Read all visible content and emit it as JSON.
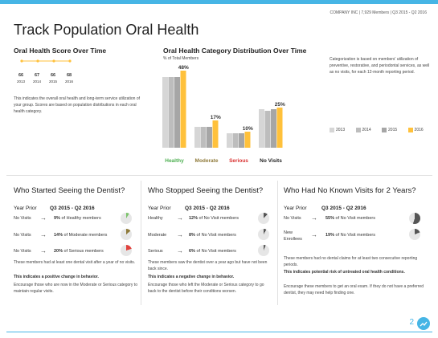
{
  "header": {
    "company": "COMPANY INC | 7,929 Members | Q3 2015 - Q2 2016",
    "title": "Track Population Oral Health",
    "page_number": "2"
  },
  "score": {
    "heading": "Oral Health Score Over Time",
    "values": [
      "66",
      "67",
      "66",
      "68"
    ],
    "years": [
      "2013",
      "2014",
      "2015",
      "2016"
    ],
    "description": "This indicates the overall oral health and long-term service utilization of your group. Scores are based on population distributions in each oral health category."
  },
  "distribution": {
    "heading": "Oral Health Category Distribution Over Time",
    "note": "Categorization is based on members' utilization of preventive, restorative, and periodontal services, as well as no visits, for each 12-month reporting period."
  },
  "chart_data": {
    "type": "bar",
    "title": "Oral Health Category Distribution Over Time",
    "ylabel": "% of Total Members",
    "categories": [
      "Healthy",
      "Moderate",
      "Serious",
      "No Visits"
    ],
    "category_colors": [
      "#4caf50",
      "#8f7a3a",
      "#d9302f",
      "#222222"
    ],
    "series": [
      {
        "name": "2013",
        "color": "#d6d6d6",
        "values": [
          44,
          13,
          9,
          24
        ]
      },
      {
        "name": "2014",
        "color": "#bdbdbd",
        "values": [
          44,
          13,
          9,
          23
        ]
      },
      {
        "name": "2015",
        "color": "#a6a6a6",
        "values": [
          44,
          13,
          9,
          24
        ]
      },
      {
        "name": "2016",
        "color": "#ffc13b",
        "values": [
          48,
          17,
          10,
          25
        ]
      }
    ],
    "data_labels": [
      "48%",
      "17%",
      "10%",
      "25%"
    ],
    "ylim": [
      0,
      50
    ],
    "grid": false,
    "legend": "right"
  },
  "panels": [
    {
      "title": "Who Started Seeing the Dentist?",
      "col1": "Year Prior",
      "col2": "Q3 2015 - Q2 2016",
      "rows": [
        {
          "from": "No Visits",
          "pct": "9%",
          "suffix": "of Healthy members",
          "color": "#7cc36b",
          "frac": 0.09
        },
        {
          "from": "No Visits",
          "pct": "14%",
          "suffix": "of Moderate members",
          "color": "#8f7a3a",
          "frac": 0.14
        },
        {
          "from": "No Visits",
          "pct": "20%",
          "suffix": "of Serious members",
          "color": "#e0423d",
          "frac": 0.2
        }
      ],
      "desc1": "These members had at least one dental visit after a year of no visits.",
      "desc2": "This indicates a positive change in behavior.",
      "desc3": "Encourage those who are now in the Moderate or Serious category to maintain regular visits."
    },
    {
      "title": "Who Stopped Seeing the Dentist?",
      "col1": "Year Prior",
      "col2": "Q3 2015 - Q2 2016",
      "rows": [
        {
          "from": "Healthy",
          "pct": "12%",
          "suffix": "of No Visit members",
          "color": "#555555",
          "frac": 0.12
        },
        {
          "from": "Moderate",
          "pct": "8%",
          "suffix": "of No Visit members",
          "color": "#555555",
          "frac": 0.08
        },
        {
          "from": "Serious",
          "pct": "6%",
          "suffix": "of No Visit members",
          "color": "#555555",
          "frac": 0.06
        }
      ],
      "desc1": "These members saw the dentist over a year ago but have not been back since.",
      "desc2": "This indicates a negative change in behavior.",
      "desc3": "Encourage those who left the Moderate or Serious category to go back to the dentist before their conditions worsen."
    },
    {
      "title": "Who Had No Known Visits for 2 Years?",
      "col1": "Year Prior",
      "col2": "Q3 2015 - Q2 2016",
      "rows": [
        {
          "from": "No Visits",
          "pct": "55%",
          "suffix": "of No Visit members",
          "color": "#555555",
          "frac": 0.55
        },
        {
          "from": "New Enrollees",
          "pct": "19%",
          "suffix": "of No Visit members",
          "color": "#555555",
          "frac": 0.19
        }
      ],
      "desc1": "These members had no dental claims for at least two consecutive reporting periods.",
      "desc2": "This indicates potential risk of untreated oral health conditions.",
      "desc3": "Encourage these members to get an oral exam. If they do not have a preferred dentist, they may need help finding one."
    }
  ]
}
